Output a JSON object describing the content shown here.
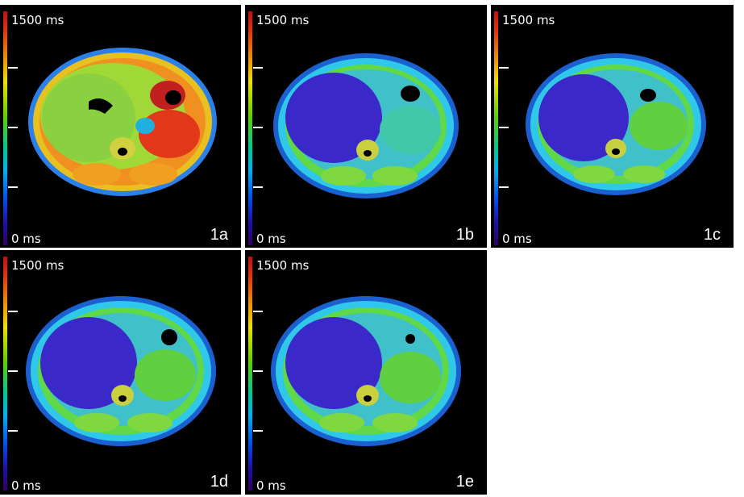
{
  "colorbar": {
    "max_label": "1500 ms",
    "min_label": "0 ms"
  },
  "panels": [
    {
      "id": "1a",
      "label": "1a"
    },
    {
      "id": "1b",
      "label": "1b"
    },
    {
      "id": "1c",
      "label": "1c"
    },
    {
      "id": "1d",
      "label": "1d"
    },
    {
      "id": "1e",
      "label": "1e"
    }
  ],
  "palette": {
    "background": "#000000",
    "colorbar_top": "#c01010",
    "colorbar_bottom": "#300060",
    "liver_1a": "#8ad040",
    "liver_short": "#3a28c8",
    "spleen_1a": "#e03818",
    "body_wall": "#30c8e8"
  }
}
